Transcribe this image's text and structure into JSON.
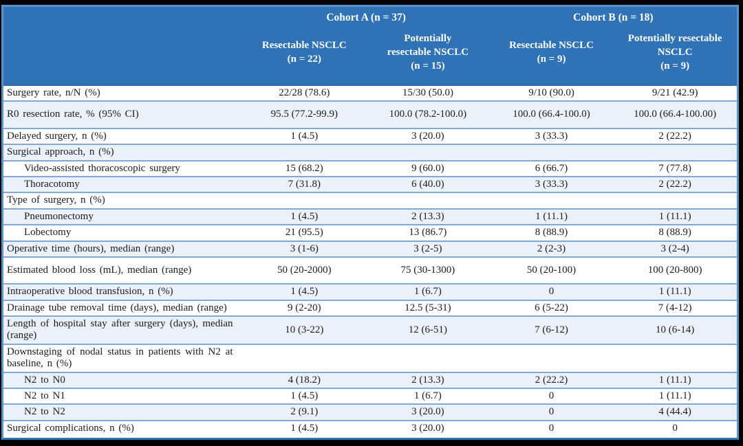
{
  "table": {
    "header": {
      "cohorts": [
        {
          "label": "Cohort A (n = 37)"
        },
        {
          "label": "Cohort B (n = 18)"
        }
      ],
      "subcolumns": [
        "Resectable NSCLC\n(n = 22)",
        "Potentially\nresectable NSCLC\n(n = 15)",
        "Resectable NSCLC\n(n = 9)",
        "Potentially resectable\nNSCLC\n(n = 9)"
      ]
    },
    "rows": [
      {
        "label": "Surgery rate, n/N (%)",
        "indent": false,
        "tall": false,
        "values": [
          "22/28 (78.6)",
          "15/30 (50.0)",
          "9/10 (90.0)",
          "9/21 (42.9)"
        ]
      },
      {
        "label": "R0 resection rate, % (95% CI)",
        "indent": false,
        "tall": true,
        "values": [
          "95.5 (77.2-99.9)",
          "100.0 (78.2-100.0)",
          "100.0 (66.4-100.0)",
          "100.0 (66.4-100.00)"
        ]
      },
      {
        "label": "Delayed surgery, n (%)",
        "indent": false,
        "tall": false,
        "values": [
          "1 (4.5)",
          "3 (20.0)",
          "3 (33.3)",
          "2 (22.2)"
        ]
      },
      {
        "label": "Surgical approach, n (%)",
        "indent": false,
        "tall": false,
        "values": [
          "",
          "",
          "",
          ""
        ]
      },
      {
        "label": "Video-assisted thoracoscopic surgery",
        "indent": true,
        "tall": false,
        "values": [
          "15 (68.2)",
          "9 (60.0)",
          "6 (66.7)",
          "7 (77.8)"
        ]
      },
      {
        "label": "Thoracotomy",
        "indent": true,
        "tall": false,
        "values": [
          "7 (31.8)",
          "6 (40.0)",
          "3 (33.3)",
          "2 (22.2)"
        ]
      },
      {
        "label": "Type of surgery, n (%)",
        "indent": false,
        "tall": false,
        "values": [
          "",
          "",
          "",
          ""
        ]
      },
      {
        "label": "Pneumonectomy",
        "indent": true,
        "tall": false,
        "values": [
          "1 (4.5)",
          "2 (13.3)",
          "1 (11.1)",
          "1 (11.1)"
        ]
      },
      {
        "label": "Lobectomy",
        "indent": true,
        "tall": false,
        "values": [
          "21 (95.5)",
          "13 (86.7)",
          "8 (88.9)",
          "8 (88.9)"
        ]
      },
      {
        "label": "Operative time (hours), median (range)",
        "indent": false,
        "tall": false,
        "values": [
          "3 (1-6)",
          "3 (2-5)",
          "2 (2-3)",
          "3 (2-4)"
        ]
      },
      {
        "label": "Estimated blood loss (mL), median (range)",
        "indent": false,
        "tall": true,
        "values": [
          "50 (20-2000)",
          "75 (30-1300)",
          "50 (20-100)",
          "100 (20-800)"
        ]
      },
      {
        "label": "Intraoperative blood transfusion, n (%)",
        "indent": false,
        "tall": false,
        "values": [
          "1 (4.5)",
          "1 (6.7)",
          "0",
          "1 (11.1)"
        ]
      },
      {
        "label": "Drainage tube removal time (days), median (range)",
        "indent": false,
        "tall": false,
        "values": [
          "9 (2-20)",
          "12.5 (5-31)",
          "6 (5-22)",
          "7 (4-12)"
        ]
      },
      {
        "label": "Length of hospital stay after surgery (days), median (range)",
        "indent": false,
        "tall": false,
        "values": [
          "10 (3-22)",
          "12 (6-51)",
          "7 (6-12)",
          "10 (6-14)"
        ]
      },
      {
        "label": "Downstaging of nodal status in patients with N2 at baseline, n (%)",
        "indent": false,
        "tall": false,
        "values": [
          "",
          "",
          "",
          ""
        ]
      },
      {
        "label": "N2 to N0",
        "indent": true,
        "tall": false,
        "values": [
          "4 (18.2)",
          "2 (13.3)",
          "2 (22.2)",
          "1 (11.1)"
        ]
      },
      {
        "label": "N2 to N1",
        "indent": true,
        "tall": false,
        "values": [
          "1 (4.5)",
          "1 (6.7)",
          "0",
          "1 (11.1)"
        ]
      },
      {
        "label": "N2 to N2",
        "indent": true,
        "tall": false,
        "values": [
          "2 (9.1)",
          "3 (20.0)",
          "0",
          "4 (44.4)"
        ]
      },
      {
        "label": "Surgical complications, n (%)",
        "indent": false,
        "tall": false,
        "values": [
          "1 (4.5)",
          "3 (20.0)",
          "0",
          "0"
        ]
      }
    ],
    "colors": {
      "header_bg": "#2F72B5",
      "header_text": "#FFFFFF",
      "row_alt_bg": "#EAF1F9",
      "row_border": "#7FA8D6",
      "outer_border": "#5B92CC",
      "header_divider": "#2E6FB0",
      "table_bottom": "#2E74B5",
      "frame": "#000000",
      "body_text": "#1C1C1C"
    }
  }
}
